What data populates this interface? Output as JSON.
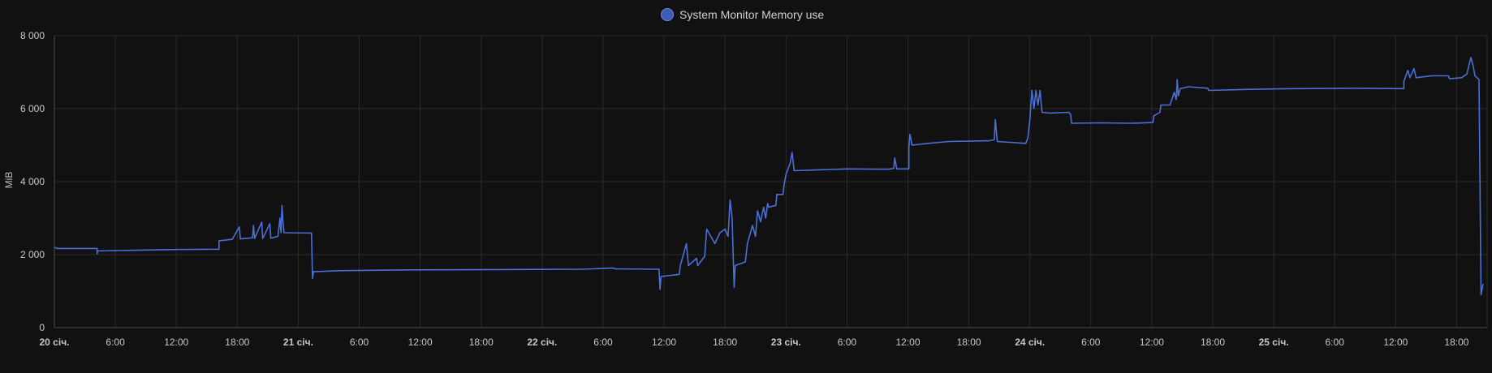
{
  "colors": {
    "background": "#111111",
    "series": "#4a6fd8",
    "legend_marker": "#3f5bb8",
    "grid": "#2b2b2b"
  },
  "chart_data": {
    "type": "line",
    "title": "",
    "xlabel": "",
    "ylabel": "MiB",
    "ylim": [
      0,
      8000
    ],
    "yticks": [
      0,
      2000,
      4000,
      6000,
      8000
    ],
    "ytick_labels": [
      "0",
      "2 000",
      "4 000",
      "6 000",
      "8 000"
    ],
    "xlim_hours": [
      0,
      141
    ],
    "xticks": [
      {
        "label": "20 січ.",
        "h": 0,
        "bold": true
      },
      {
        "label": "6:00",
        "h": 6,
        "bold": false
      },
      {
        "label": "12:00",
        "h": 12,
        "bold": false
      },
      {
        "label": "18:00",
        "h": 18,
        "bold": false
      },
      {
        "label": "21 січ.",
        "h": 24,
        "bold": true
      },
      {
        "label": "6:00",
        "h": 30,
        "bold": false
      },
      {
        "label": "12:00",
        "h": 36,
        "bold": false
      },
      {
        "label": "18:00",
        "h": 42,
        "bold": false
      },
      {
        "label": "22 січ.",
        "h": 48,
        "bold": true
      },
      {
        "label": "6:00",
        "h": 54,
        "bold": false
      },
      {
        "label": "12:00",
        "h": 60,
        "bold": false
      },
      {
        "label": "18:00",
        "h": 66,
        "bold": false
      },
      {
        "label": "23 січ.",
        "h": 72,
        "bold": true
      },
      {
        "label": "6:00",
        "h": 78,
        "bold": false
      },
      {
        "label": "12:00",
        "h": 84,
        "bold": false
      },
      {
        "label": "18:00",
        "h": 90,
        "bold": false
      },
      {
        "label": "24 січ.",
        "h": 96,
        "bold": true
      },
      {
        "label": "6:00",
        "h": 102,
        "bold": false
      },
      {
        "label": "12:00",
        "h": 108,
        "bold": false
      },
      {
        "label": "18:00",
        "h": 114,
        "bold": false
      },
      {
        "label": "25 січ.",
        "h": 120,
        "bold": true
      },
      {
        "label": "6:00",
        "h": 126,
        "bold": false
      },
      {
        "label": "12:00",
        "h": 132,
        "bold": false
      },
      {
        "label": "18:00",
        "h": 138,
        "bold": false
      }
    ],
    "legend": {
      "position": "top-center"
    },
    "grid": true,
    "series": [
      {
        "name": "System Monitor Memory use",
        "points": [
          [
            0,
            2200
          ],
          [
            0.3,
            2170
          ],
          [
            4.2,
            2170
          ],
          [
            4.2,
            2020
          ],
          [
            4.25,
            2100
          ],
          [
            8,
            2120
          ],
          [
            12,
            2140
          ],
          [
            16.2,
            2150
          ],
          [
            16.2,
            2380
          ],
          [
            16.6,
            2390
          ],
          [
            17.5,
            2420
          ],
          [
            18.2,
            2760
          ],
          [
            18.3,
            2430
          ],
          [
            19.5,
            2460
          ],
          [
            19.6,
            2800
          ],
          [
            19.7,
            2440
          ],
          [
            20.4,
            2890
          ],
          [
            20.5,
            2440
          ],
          [
            21.2,
            2850
          ],
          [
            21.3,
            2450
          ],
          [
            22.0,
            2500
          ],
          [
            22.2,
            3000
          ],
          [
            22.3,
            2600
          ],
          [
            22.4,
            3350
          ],
          [
            22.5,
            2900
          ],
          [
            22.6,
            2600
          ],
          [
            25.3,
            2590
          ],
          [
            25.4,
            1350
          ],
          [
            25.5,
            1530
          ],
          [
            28,
            1560
          ],
          [
            34,
            1580
          ],
          [
            44,
            1590
          ],
          [
            52,
            1600
          ],
          [
            55,
            1630
          ],
          [
            55.2,
            1610
          ],
          [
            59.5,
            1600
          ],
          [
            59.6,
            1050
          ],
          [
            59.7,
            1400
          ],
          [
            61.5,
            1460
          ],
          [
            61.6,
            1700
          ],
          [
            62.2,
            2300
          ],
          [
            62.4,
            1700
          ],
          [
            63.2,
            1900
          ],
          [
            63.3,
            1700
          ],
          [
            64.0,
            1950
          ],
          [
            64.2,
            2700
          ],
          [
            65.0,
            2300
          ],
          [
            65.5,
            2600
          ],
          [
            66.0,
            2700
          ],
          [
            66.3,
            2500
          ],
          [
            66.5,
            3500
          ],
          [
            66.7,
            3000
          ],
          [
            66.9,
            1100
          ],
          [
            67.0,
            1700
          ],
          [
            68.0,
            1800
          ],
          [
            68.2,
            2300
          ],
          [
            68.7,
            2800
          ],
          [
            69.0,
            2500
          ],
          [
            69.2,
            3200
          ],
          [
            69.5,
            2900
          ],
          [
            69.8,
            3300
          ],
          [
            70.0,
            3000
          ],
          [
            70.2,
            3400
          ],
          [
            70.3,
            3300
          ],
          [
            71.0,
            3350
          ],
          [
            71.1,
            3650
          ],
          [
            71.7,
            3650
          ],
          [
            71.8,
            3900
          ],
          [
            72.0,
            4200
          ],
          [
            72.4,
            4500
          ],
          [
            72.6,
            4800
          ],
          [
            72.8,
            4300
          ],
          [
            75,
            4320
          ],
          [
            78,
            4350
          ],
          [
            82,
            4340
          ],
          [
            82.6,
            4360
          ],
          [
            82.7,
            4650
          ],
          [
            82.9,
            4350
          ],
          [
            84.1,
            4350
          ],
          [
            84.1,
            4950
          ],
          [
            84.2,
            5300
          ],
          [
            84.4,
            5000
          ],
          [
            86,
            5050
          ],
          [
            88,
            5100
          ],
          [
            92,
            5120
          ],
          [
            92.5,
            5150
          ],
          [
            92.6,
            5700
          ],
          [
            92.8,
            5100
          ],
          [
            95.6,
            5050
          ],
          [
            95.8,
            5200
          ],
          [
            96.0,
            5700
          ],
          [
            96.2,
            6500
          ],
          [
            96.4,
            6000
          ],
          [
            96.6,
            6500
          ],
          [
            96.8,
            6100
          ],
          [
            97.0,
            6500
          ],
          [
            97.2,
            5900
          ],
          [
            98,
            5880
          ],
          [
            99.8,
            5900
          ],
          [
            100,
            5850
          ],
          [
            100.1,
            5600
          ],
          [
            103,
            5610
          ],
          [
            106,
            5600
          ],
          [
            108.1,
            5620
          ],
          [
            108.2,
            5800
          ],
          [
            108.8,
            5900
          ],
          [
            108.9,
            6100
          ],
          [
            109.8,
            6100
          ],
          [
            110.2,
            6450
          ],
          [
            110.4,
            6250
          ],
          [
            110.5,
            6800
          ],
          [
            110.6,
            6350
          ],
          [
            110.8,
            6550
          ],
          [
            111.6,
            6600
          ],
          [
            113.5,
            6560
          ],
          [
            113.6,
            6500
          ],
          [
            118,
            6530
          ],
          [
            122,
            6550
          ],
          [
            128,
            6560
          ],
          [
            132.8,
            6550
          ],
          [
            132.8,
            6750
          ],
          [
            133.2,
            7050
          ],
          [
            133.4,
            6850
          ],
          [
            133.8,
            7100
          ],
          [
            134.0,
            6850
          ],
          [
            135.5,
            6900
          ],
          [
            137.2,
            6900
          ],
          [
            137.3,
            6820
          ],
          [
            138.5,
            6850
          ],
          [
            139.0,
            6950
          ],
          [
            139.4,
            7400
          ],
          [
            139.6,
            7200
          ],
          [
            139.8,
            6900
          ],
          [
            140.2,
            6800
          ],
          [
            140.4,
            900
          ],
          [
            140.6,
            1200
          ]
        ]
      }
    ]
  }
}
